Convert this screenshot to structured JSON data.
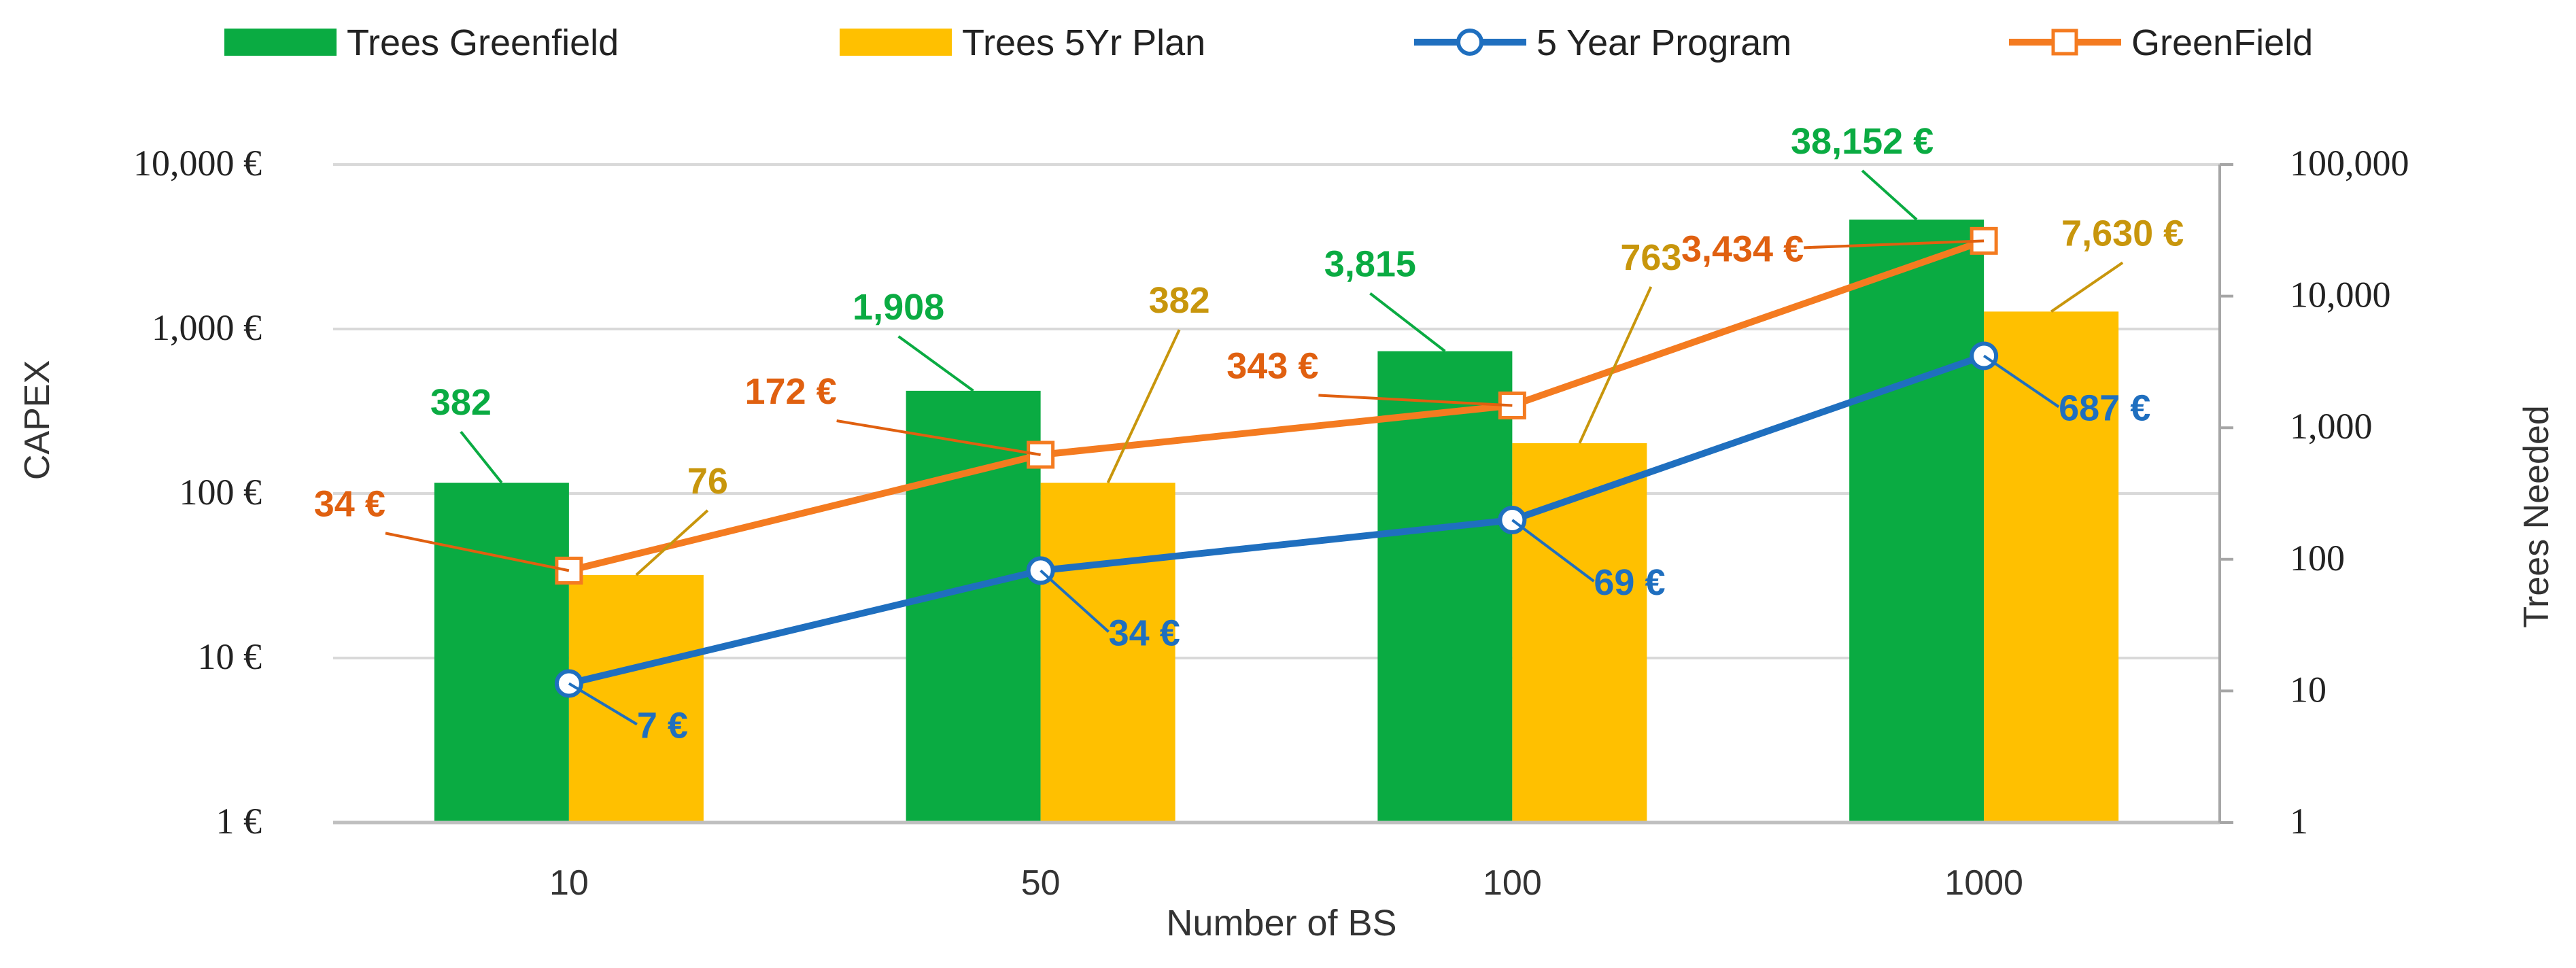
{
  "chart_data": {
    "type": "bar",
    "xlabel": "Number of BS",
    "ylabel_left": "CAPEX",
    "ylabel_right": "Trees Needed",
    "categories": [
      "10",
      "50",
      "100",
      "1000"
    ],
    "left_axis": {
      "scale": "log",
      "ylim": [
        1,
        10000
      ],
      "ticks": [
        1,
        10,
        100,
        1000,
        10000
      ],
      "tick_labels": [
        "1 €",
        "10 €",
        "100 €",
        "1,000 €",
        "10,000 €"
      ]
    },
    "right_axis": {
      "scale": "log",
      "ylim": [
        1,
        100000
      ],
      "ticks": [
        1,
        10,
        100,
        1000,
        10000,
        100000
      ],
      "tick_labels": [
        "1",
        "10",
        "100",
        "1,000",
        "10,000",
        "100,000"
      ]
    },
    "bar_series": [
      {
        "name": "Trees Greenfield",
        "color": "#0aab42",
        "axis": "right",
        "values": [
          382,
          1908,
          3815,
          38152
        ],
        "labels": [
          "382",
          "1,908",
          "3,815",
          "38,152 €"
        ]
      },
      {
        "name": "Trees 5Yr Plan",
        "color": "#ffc000",
        "label_color": "#c8960c",
        "axis": "right",
        "values": [
          76,
          382,
          763,
          7630
        ],
        "labels": [
          "76",
          "382",
          "763",
          "7,630 €"
        ]
      }
    ],
    "line_series": [
      {
        "name": "5 Year Program",
        "color": "#1f6fbf",
        "marker": "circle",
        "axis": "left",
        "values": [
          7,
          34,
          69,
          687
        ],
        "labels": [
          "7 €",
          "34 €",
          "69 €",
          "687 €"
        ]
      },
      {
        "name": "GreenField",
        "color": "#f47b20",
        "label_color": "#e06010",
        "marker": "square",
        "axis": "left",
        "values": [
          34,
          172,
          343,
          3434
        ],
        "labels": [
          "34 €",
          "172 €",
          "343 €",
          "3,434 €"
        ]
      }
    ],
    "gridlines": true,
    "legend": "top"
  }
}
